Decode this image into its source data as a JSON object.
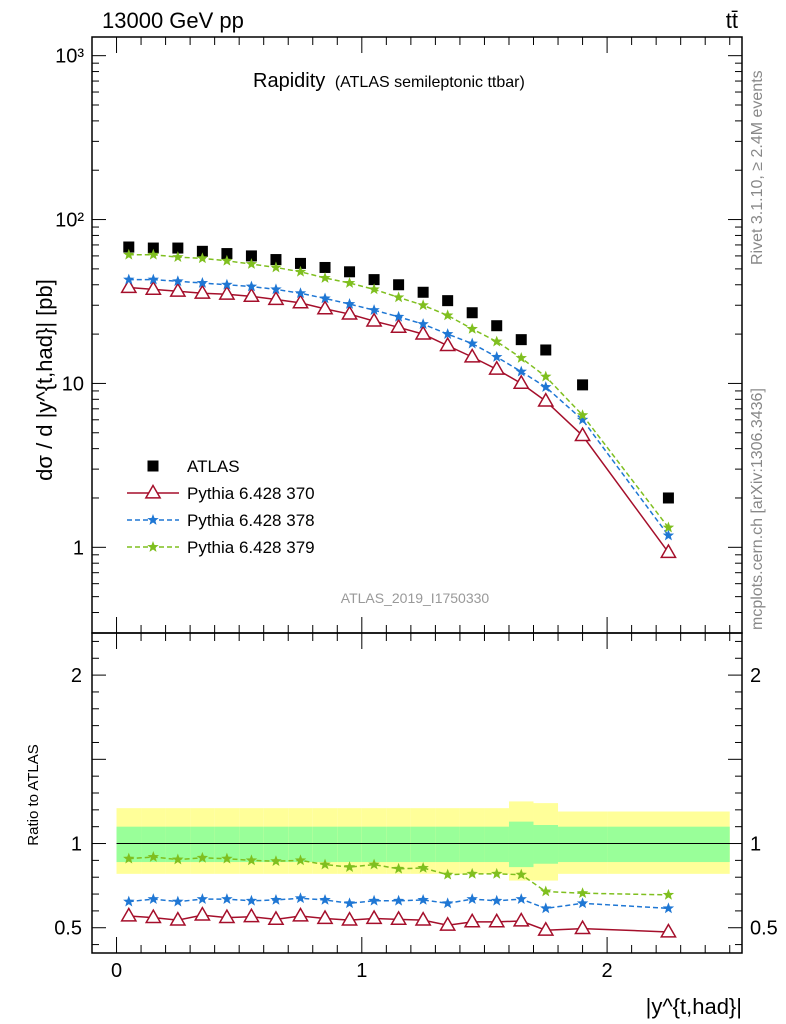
{
  "header": {
    "energy_label": "13000 GeV pp",
    "process_label": "tt̄"
  },
  "side_labels": {
    "rivet": "Rivet 3.1.10, ≥ 2.4M events",
    "mcplots": "mcplots.cern.ch [arXiv:1306.3436]"
  },
  "plot_title": {
    "main": "Rapidity",
    "sub": "(ATLAS semileptonic ttbar)"
  },
  "analysis_id": "ATLAS_2019_I1750330",
  "axes": {
    "ylabel_main": "dσ / d |y^{t,had}| [pb]",
    "ylabel_ratio": "Ratio to ATLAS",
    "xlabel": "|y^{t,had}|"
  },
  "colors": {
    "atlas": "#000000",
    "p370": "#a50f2b",
    "p378": "#1f77d4",
    "p379": "#7fbf1f",
    "band_inner": "#99ff99",
    "band_outer": "#ffff99"
  },
  "chart_data": {
    "type": "scatter",
    "x_range": [
      -0.1,
      2.55
    ],
    "y_range_main": [
      0.3,
      1300
    ],
    "y_scale_main": "log",
    "y_range_ratio": [
      0.35,
      2.25
    ],
    "y_ticks_main": [
      {
        "v": 1,
        "label": "1"
      },
      {
        "v": 10,
        "label": "10"
      },
      {
        "v": 100,
        "label": "10²"
      },
      {
        "v": 1000,
        "label": "10³"
      }
    ],
    "y_ticks_ratio": [
      {
        "v": 0.5,
        "label": "0.5"
      },
      {
        "v": 1,
        "label": "1"
      },
      {
        "v": 2,
        "label": "2"
      }
    ],
    "x_ticks": [
      {
        "v": 0,
        "label": "0"
      },
      {
        "v": 1,
        "label": "1"
      },
      {
        "v": 2,
        "label": "2"
      }
    ],
    "bin_edges": [
      0,
      0.1,
      0.2,
      0.3,
      0.4,
      0.5,
      0.6,
      0.7,
      0.8,
      0.9,
      1.0,
      1.1,
      1.2,
      1.3,
      1.4,
      1.5,
      1.6,
      1.7,
      1.8,
      2.0,
      2.5
    ],
    "x": [
      0.05,
      0.15,
      0.25,
      0.35,
      0.45,
      0.55,
      0.65,
      0.75,
      0.85,
      0.95,
      1.05,
      1.15,
      1.25,
      1.35,
      1.45,
      1.55,
      1.65,
      1.75,
      1.9,
      2.25
    ],
    "series": [
      {
        "name": "ATLAS",
        "marker": "square",
        "values": [
          68,
          67,
          67,
          64,
          62,
          60,
          57,
          54,
          51,
          48,
          43,
          40,
          36,
          32,
          27,
          22.5,
          18.5,
          16,
          9.8,
          2.0
        ]
      },
      {
        "name": "Pythia 6.428 370",
        "marker": "open-triangle",
        "line": "solid",
        "values": [
          38.5,
          37.5,
          36.5,
          35.5,
          35,
          34,
          32.5,
          31,
          28.5,
          26.5,
          24,
          22,
          20,
          17,
          14.5,
          12.2,
          10,
          7.8,
          4.8,
          0.93
        ]
      },
      {
        "name": "Pythia 6.428 378",
        "marker": "star",
        "line": "dashed",
        "values": [
          43,
          43,
          42,
          41,
          40,
          39,
          37.5,
          35.5,
          33,
          30.5,
          28,
          25.5,
          23,
          20,
          17.5,
          14.5,
          11.8,
          9.5,
          6,
          1.18
        ]
      },
      {
        "name": "Pythia 6.428 379",
        "marker": "star",
        "line": "dashed",
        "values": [
          61,
          61,
          59,
          58,
          56,
          53.5,
          51,
          48,
          44,
          41,
          37.5,
          33.5,
          30,
          26,
          21.5,
          18,
          14.3,
          11,
          6.4,
          1.32
        ]
      }
    ],
    "ratio_series": [
      {
        "name": "Pythia 6.428 370",
        "values": [
          0.57,
          0.56,
          0.545,
          0.575,
          0.56,
          0.565,
          0.55,
          0.57,
          0.555,
          0.545,
          0.555,
          0.55,
          0.545,
          0.515,
          0.535,
          0.535,
          0.54,
          0.485,
          0.495,
          0.475
        ]
      },
      {
        "name": "Pythia 6.428 378",
        "values": [
          0.655,
          0.67,
          0.655,
          0.67,
          0.67,
          0.66,
          0.665,
          0.675,
          0.665,
          0.645,
          0.66,
          0.66,
          0.665,
          0.645,
          0.67,
          0.66,
          0.67,
          0.615,
          0.645,
          0.615
        ]
      },
      {
        "name": "Pythia 6.428 379",
        "values": [
          0.91,
          0.92,
          0.905,
          0.915,
          0.91,
          0.9,
          0.895,
          0.9,
          0.875,
          0.86,
          0.875,
          0.85,
          0.855,
          0.815,
          0.82,
          0.82,
          0.815,
          0.715,
          0.705,
          0.695
        ]
      }
    ],
    "band_inner": [
      [
        0.89,
        1.1
      ],
      [
        0.89,
        1.1
      ],
      [
        0.89,
        1.1
      ],
      [
        0.89,
        1.1
      ],
      [
        0.89,
        1.1
      ],
      [
        0.89,
        1.1
      ],
      [
        0.89,
        1.1
      ],
      [
        0.89,
        1.1
      ],
      [
        0.89,
        1.1
      ],
      [
        0.89,
        1.1
      ],
      [
        0.89,
        1.1
      ],
      [
        0.89,
        1.1
      ],
      [
        0.89,
        1.1
      ],
      [
        0.89,
        1.1
      ],
      [
        0.89,
        1.1
      ],
      [
        0.89,
        1.1
      ],
      [
        0.86,
        1.13
      ],
      [
        0.88,
        1.11
      ],
      [
        0.89,
        1.1
      ],
      [
        0.89,
        1.1
      ]
    ],
    "band_outer": [
      [
        0.82,
        1.21
      ],
      [
        0.82,
        1.21
      ],
      [
        0.82,
        1.21
      ],
      [
        0.82,
        1.21
      ],
      [
        0.82,
        1.21
      ],
      [
        0.82,
        1.21
      ],
      [
        0.82,
        1.21
      ],
      [
        0.82,
        1.21
      ],
      [
        0.82,
        1.21
      ],
      [
        0.82,
        1.21
      ],
      [
        0.82,
        1.21
      ],
      [
        0.82,
        1.21
      ],
      [
        0.82,
        1.21
      ],
      [
        0.82,
        1.21
      ],
      [
        0.82,
        1.21
      ],
      [
        0.82,
        1.21
      ],
      [
        0.78,
        1.25
      ],
      [
        0.78,
        1.24
      ],
      [
        0.82,
        1.19
      ],
      [
        0.82,
        1.19
      ]
    ],
    "legend_placement": "lower-left"
  }
}
